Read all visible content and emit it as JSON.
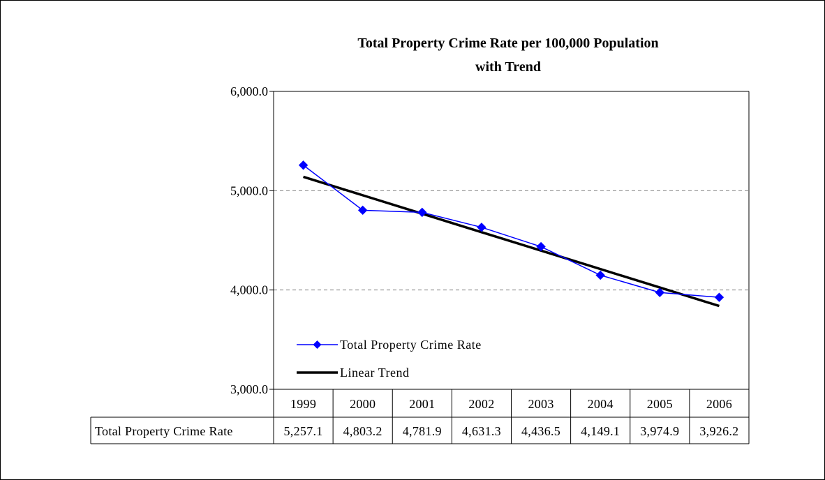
{
  "chart_data": {
    "type": "line",
    "title": "Total Property Crime Rate per 100,000 Population",
    "subtitle": "with Trend",
    "categories": [
      "1999",
      "2000",
      "2001",
      "2002",
      "2003",
      "2004",
      "2005",
      "2006"
    ],
    "series": [
      {
        "name": "Total Property Crime Rate",
        "values": [
          5257.1,
          4803.2,
          4781.9,
          4631.3,
          4436.5,
          4149.1,
          3974.9,
          3926.2
        ],
        "color": "#0000ff",
        "marker": "diamond"
      },
      {
        "name": "Linear Trend",
        "values": [
          5140,
          4954,
          4768,
          4582,
          4397,
          4211,
          4025,
          3839
        ],
        "color": "#000000"
      }
    ],
    "ylim": [
      3000,
      6000
    ],
    "yticks": [
      3000,
      4000,
      5000,
      6000
    ],
    "ytick_labels": [
      "3,000.0",
      "4,000.0",
      "5,000.0",
      "6,000.0"
    ],
    "grid": "horizontal dashed",
    "legend_position": "bottom-left inside",
    "data_table": {
      "row_label": "Total Property Crime Rate",
      "values": [
        "5,257.1",
        "4,803.2",
        "4,781.9",
        "4,631.3",
        "4,436.5",
        "4,149.1",
        "3,974.9",
        "3,926.2"
      ]
    }
  }
}
